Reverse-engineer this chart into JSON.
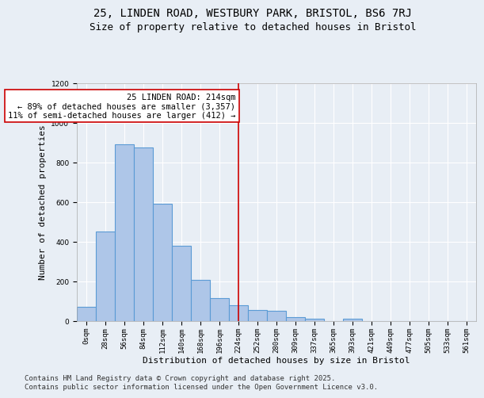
{
  "title_line1": "25, LINDEN ROAD, WESTBURY PARK, BRISTOL, BS6 7RJ",
  "title_line2": "Size of property relative to detached houses in Bristol",
  "xlabel": "Distribution of detached houses by size in Bristol",
  "ylabel": "Number of detached properties",
  "bar_labels": [
    "0sqm",
    "28sqm",
    "56sqm",
    "84sqm",
    "112sqm",
    "140sqm",
    "168sqm",
    "196sqm",
    "224sqm",
    "252sqm",
    "280sqm",
    "309sqm",
    "337sqm",
    "365sqm",
    "393sqm",
    "421sqm",
    "449sqm",
    "477sqm",
    "505sqm",
    "533sqm",
    "561sqm"
  ],
  "bar_values": [
    70,
    450,
    890,
    875,
    590,
    380,
    205,
    115,
    80,
    55,
    50,
    20,
    10,
    0,
    12,
    0,
    0,
    0,
    0,
    0,
    0
  ],
  "bar_color": "#aec6e8",
  "bar_edgecolor": "#5b9bd5",
  "vline_index": 8,
  "vline_color": "#cc0000",
  "annotation_text": "25 LINDEN ROAD: 214sqm\n← 89% of detached houses are smaller (3,357)\n11% of semi-detached houses are larger (412) →",
  "annotation_box_color": "#ffffff",
  "annotation_box_edgecolor": "#cc0000",
  "ylim": [
    0,
    1200
  ],
  "yticks": [
    0,
    200,
    400,
    600,
    800,
    1000,
    1200
  ],
  "background_color": "#e8eef5",
  "grid_color": "#ffffff",
  "footer_line1": "Contains HM Land Registry data © Crown copyright and database right 2025.",
  "footer_line2": "Contains public sector information licensed under the Open Government Licence v3.0.",
  "title_fontsize": 10,
  "subtitle_fontsize": 9,
  "axis_label_fontsize": 8,
  "tick_fontsize": 6.5,
  "annotation_fontsize": 7.5,
  "footer_fontsize": 6.5
}
